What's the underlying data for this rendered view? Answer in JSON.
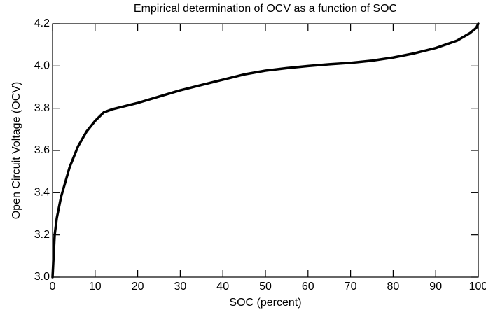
{
  "chart_data": {
    "type": "line",
    "title": "Empirical determination of OCV as a function of SOC",
    "x_label": "SOC (percent)",
    "y_label": "Open Circuit Voltage (OCV)",
    "xlim": [
      0,
      100
    ],
    "ylim": [
      3.0,
      4.2
    ],
    "xticks": [
      0,
      10,
      20,
      30,
      40,
      50,
      60,
      70,
      80,
      90,
      100
    ],
    "yticks": [
      {
        "value": 3.0,
        "label": "3.0"
      },
      3.2,
      3.4,
      3.6,
      3.8,
      {
        "value": 4.0,
        "label": "4.0"
      },
      4.2
    ],
    "x": [
      0,
      0.5,
      1,
      2,
      3,
      4,
      5,
      6,
      8,
      10,
      12,
      14,
      16,
      20,
      25,
      30,
      35,
      40,
      45,
      50,
      55,
      60,
      65,
      70,
      75,
      80,
      85,
      90,
      95,
      98,
      99.5,
      100
    ],
    "series": [
      {
        "name": "OCV",
        "color": "#000000",
        "values": [
          3.0,
          3.2,
          3.28,
          3.38,
          3.45,
          3.52,
          3.57,
          3.62,
          3.69,
          3.74,
          3.78,
          3.795,
          3.805,
          3.825,
          3.855,
          3.885,
          3.91,
          3.935,
          3.96,
          3.978,
          3.99,
          4.0,
          4.008,
          4.015,
          4.025,
          4.04,
          4.06,
          4.085,
          4.12,
          4.155,
          4.18,
          4.2
        ]
      }
    ]
  }
}
